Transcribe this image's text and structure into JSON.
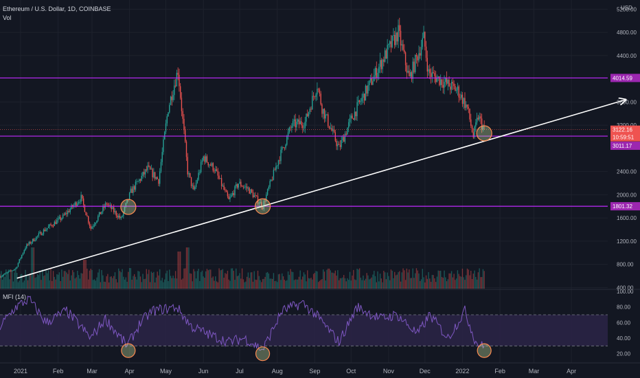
{
  "header": {
    "symbol_line": "Ethereum / U.S. Dollar, 1D, COINBASE",
    "vol_label": "Vol",
    "mfi_label": "MFI (14)"
  },
  "currency": "USD",
  "colors": {
    "background": "#131722",
    "up": "#26a69a",
    "down": "#ef5350",
    "level_line": "#c028ff",
    "level_label_bg": "#9c27b0",
    "price_label_bg": "#ef5350",
    "trendline": "#ffffff",
    "mfi_line": "#7e57c2",
    "mfi_band": "#2a2445",
    "circle_fill": "#c8e6a0",
    "circle_stroke": "#ff8a50",
    "axis_text": "#b2b5be",
    "grid": "#1e222d"
  },
  "price_axis": {
    "ticks": [
      "5200.00",
      "4800.00",
      "4400.00",
      "3600.00",
      "3200.00",
      "2400.00",
      "2000.00",
      "1600.00",
      "1200.00",
      "800.00",
      "400.00"
    ]
  },
  "mfi_axis": {
    "ticks": [
      "100.00",
      "80.00",
      "60.00",
      "40.00",
      "20.00"
    ]
  },
  "time_axis": {
    "labels": [
      "2021",
      "Feb",
      "Mar",
      "Apr",
      "May",
      "Jun",
      "Jul",
      "Aug",
      "Sep",
      "Oct",
      "Nov",
      "Dec",
      "2022",
      "Feb",
      "Mar",
      "Apr"
    ]
  },
  "badges": {
    "level_top": "4014.59",
    "level_mid": "3011.17",
    "level_low": "1801.32",
    "last_price": "3122.16",
    "countdown": "10:59:51"
  },
  "chart_data": {
    "type": "candlestick",
    "symbol": "Ethereum / U.S. Dollar",
    "interval": "1D",
    "exchange": "COINBASE",
    "currency": "USD",
    "x_range": [
      "2020-12-15",
      "2022-05-01"
    ],
    "price_range": [
      380,
      5300
    ],
    "horizontal_levels": [
      4014.59,
      3011.17,
      1801.32
    ],
    "last_price": 3122.16,
    "trendline": {
      "from": [
        "2020-12-29",
        560
      ],
      "to": [
        "2022-05-16",
        3640
      ]
    },
    "price_keypoints": [
      [
        "2020-12-15",
        590
      ],
      [
        "2020-12-28",
        730
      ],
      [
        "2021-01-05",
        1100
      ],
      [
        "2021-01-20",
        1380
      ],
      [
        "2021-02-05",
        1620
      ],
      [
        "2021-02-20",
        1950
      ],
      [
        "2021-02-28",
        1420
      ],
      [
        "2021-03-13",
        1850
      ],
      [
        "2021-03-25",
        1580
      ],
      [
        "2021-04-02",
        2050
      ],
      [
        "2021-04-16",
        2450
      ],
      [
        "2021-04-25",
        2250
      ],
      [
        "2021-05-03",
        3500
      ],
      [
        "2021-05-11",
        4150
      ],
      [
        "2021-05-19",
        2400
      ],
      [
        "2021-05-24",
        2050
      ],
      [
        "2021-06-01",
        2650
      ],
      [
        "2021-06-10",
        2450
      ],
      [
        "2021-06-22",
        1900
      ],
      [
        "2021-06-30",
        2200
      ],
      [
        "2021-07-08",
        2100
      ],
      [
        "2021-07-20",
        1800
      ],
      [
        "2021-08-01",
        2550
      ],
      [
        "2021-08-13",
        3200
      ],
      [
        "2021-08-24",
        3250
      ],
      [
        "2021-09-03",
        3900
      ],
      [
        "2021-09-07",
        3500
      ],
      [
        "2021-09-21",
        2800
      ],
      [
        "2021-10-01",
        3300
      ],
      [
        "2021-10-15",
        3850
      ],
      [
        "2021-10-29",
        4400
      ],
      [
        "2021-11-09",
        4800
      ],
      [
        "2021-11-18",
        4000
      ],
      [
        "2021-11-30",
        4700
      ],
      [
        "2021-12-04",
        4100
      ],
      [
        "2021-12-20",
        3900
      ],
      [
        "2021-12-28",
        3800
      ],
      [
        "2022-01-05",
        3500
      ],
      [
        "2022-01-10",
        3000
      ],
      [
        "2022-01-14",
        3350
      ],
      [
        "2022-01-19",
        3122
      ]
    ],
    "mfi": {
      "label": "MFI (14)",
      "range": [
        10,
        100
      ],
      "bands": [
        30,
        70
      ],
      "keypoints": [
        [
          "2020-12-15",
          55
        ],
        [
          "2020-12-28",
          80
        ],
        [
          "2021-01-08",
          90
        ],
        [
          "2021-01-22",
          60
        ],
        [
          "2021-02-08",
          75
        ],
        [
          "2021-02-28",
          40
        ],
        [
          "2021-03-12",
          65
        ],
        [
          "2021-03-30",
          30
        ],
        [
          "2021-04-10",
          60
        ],
        [
          "2021-04-20",
          75
        ],
        [
          "2021-05-10",
          80
        ],
        [
          "2021-05-22",
          55
        ],
        [
          "2021-06-05",
          45
        ],
        [
          "2021-06-22",
          35
        ],
        [
          "2021-07-05",
          40
        ],
        [
          "2021-07-20",
          25
        ],
        [
          "2021-08-05",
          75
        ],
        [
          "2021-08-22",
          85
        ],
        [
          "2021-09-02",
          70
        ],
        [
          "2021-09-21",
          35
        ],
        [
          "2021-10-06",
          80
        ],
        [
          "2021-10-25",
          65
        ],
        [
          "2021-11-08",
          70
        ],
        [
          "2021-11-25",
          45
        ],
        [
          "2021-12-05",
          70
        ],
        [
          "2021-12-20",
          40
        ],
        [
          "2022-01-03",
          75
        ],
        [
          "2022-01-12",
          35
        ],
        [
          "2022-01-19",
          28
        ]
      ]
    },
    "volume_spikes": [
      [
        "2021-01-11",
        1.0
      ],
      [
        "2021-05-12",
        0.9
      ],
      [
        "2021-05-19",
        1.0
      ],
      [
        "2021-02-23",
        0.7
      ]
    ]
  }
}
